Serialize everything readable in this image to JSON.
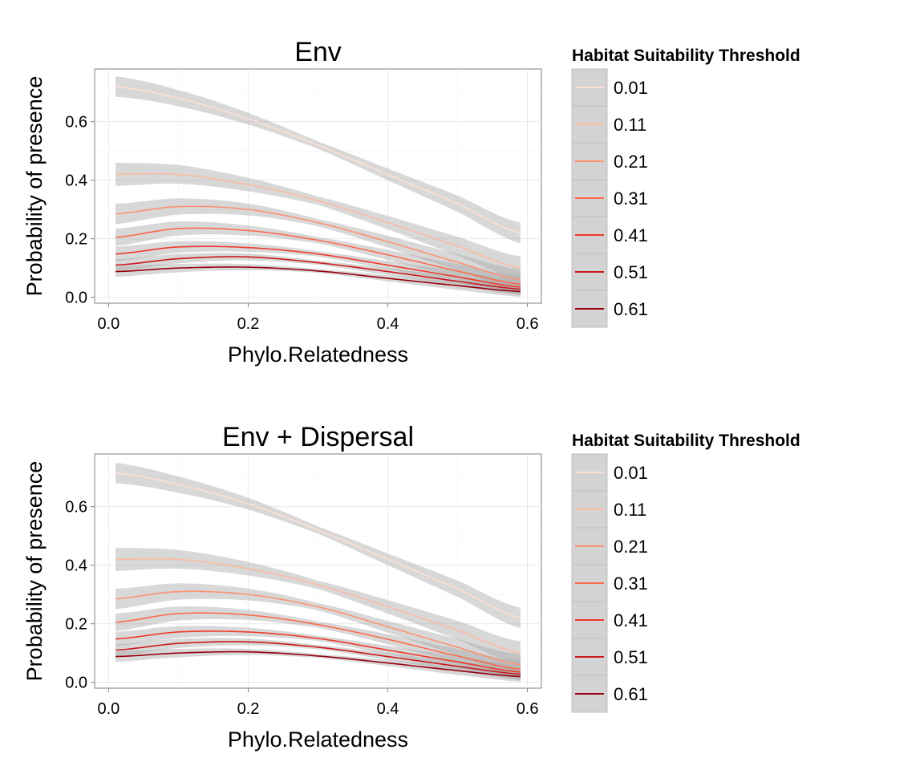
{
  "chart_data": [
    {
      "type": "line",
      "title": "Env",
      "xlabel": "Phylo.Relatedness",
      "ylabel": "Probability of presence",
      "xlim": [
        -0.02,
        0.62
      ],
      "ylim": [
        -0.02,
        0.78
      ],
      "xticks": [
        0.0,
        0.2,
        0.4,
        0.6
      ],
      "xtick_labels": [
        "0.0",
        "0.2",
        "0.4",
        "0.6"
      ],
      "yticks": [
        0.0,
        0.2,
        0.4,
        0.6
      ],
      "ytick_labels": [
        "0.0",
        "0.2",
        "0.4",
        "0.6"
      ],
      "grid": true,
      "legend": {
        "title": "Habitat Suitability Threshold",
        "position": "right"
      },
      "x": [
        0.01,
        0.1,
        0.2,
        0.3,
        0.4,
        0.5,
        0.59
      ],
      "series": [
        {
          "name": "0.01",
          "color": "#fee0d2",
          "values": [
            0.72,
            0.68,
            0.61,
            0.52,
            0.42,
            0.32,
            0.22
          ],
          "band": 0.035
        },
        {
          "name": "0.11",
          "color": "#fcbba1",
          "values": [
            0.42,
            0.42,
            0.385,
            0.33,
            0.255,
            0.175,
            0.1
          ],
          "band": 0.04
        },
        {
          "name": "0.21",
          "color": "#fc9272",
          "values": [
            0.285,
            0.31,
            0.3,
            0.255,
            0.19,
            0.12,
            0.06
          ],
          "band": 0.035
        },
        {
          "name": "0.31",
          "color": "#fb6a4a",
          "values": [
            0.205,
            0.235,
            0.228,
            0.195,
            0.145,
            0.09,
            0.045
          ],
          "band": 0.03
        },
        {
          "name": "0.41",
          "color": "#ef3b2c",
          "values": [
            0.148,
            0.172,
            0.17,
            0.148,
            0.11,
            0.07,
            0.035
          ],
          "band": 0.025
        },
        {
          "name": "0.51",
          "color": "#cb181d",
          "values": [
            0.11,
            0.132,
            0.138,
            0.118,
            0.088,
            0.055,
            0.028
          ],
          "band": 0.02
        },
        {
          "name": "0.61",
          "color": "#99000d",
          "values": [
            0.088,
            0.1,
            0.103,
            0.09,
            0.065,
            0.04,
            0.02
          ],
          "band": 0.018
        }
      ]
    },
    {
      "type": "line",
      "title": "Env + Dispersal",
      "xlabel": "Phylo.Relatedness",
      "ylabel": "Probability of presence",
      "xlim": [
        -0.02,
        0.62
      ],
      "ylim": [
        -0.02,
        0.78
      ],
      "xticks": [
        0.0,
        0.2,
        0.4,
        0.6
      ],
      "xtick_labels": [
        "0.0",
        "0.2",
        "0.4",
        "0.6"
      ],
      "yticks": [
        0.0,
        0.2,
        0.4,
        0.6
      ],
      "ytick_labels": [
        "0.0",
        "0.2",
        "0.4",
        "0.6"
      ],
      "grid": true,
      "legend": {
        "title": "Habitat Suitability Threshold",
        "position": "right"
      },
      "x": [
        0.01,
        0.1,
        0.2,
        0.3,
        0.4,
        0.5,
        0.59
      ],
      "series": [
        {
          "name": "0.01",
          "color": "#fee0d2",
          "values": [
            0.715,
            0.675,
            0.61,
            0.52,
            0.42,
            0.32,
            0.22
          ],
          "band": 0.035
        },
        {
          "name": "0.11",
          "color": "#fcbba1",
          "values": [
            0.42,
            0.42,
            0.388,
            0.333,
            0.258,
            0.178,
            0.1
          ],
          "band": 0.04
        },
        {
          "name": "0.21",
          "color": "#fc9272",
          "values": [
            0.285,
            0.31,
            0.3,
            0.258,
            0.19,
            0.12,
            0.06
          ],
          "band": 0.035
        },
        {
          "name": "0.31",
          "color": "#fb6a4a",
          "values": [
            0.205,
            0.235,
            0.23,
            0.197,
            0.147,
            0.09,
            0.045
          ],
          "band": 0.03
        },
        {
          "name": "0.41",
          "color": "#ef3b2c",
          "values": [
            0.148,
            0.172,
            0.172,
            0.15,
            0.11,
            0.07,
            0.035
          ],
          "band": 0.025
        },
        {
          "name": "0.51",
          "color": "#cb181d",
          "values": [
            0.11,
            0.133,
            0.138,
            0.12,
            0.088,
            0.055,
            0.028
          ],
          "band": 0.02
        },
        {
          "name": "0.61",
          "color": "#99000d",
          "values": [
            0.088,
            0.1,
            0.104,
            0.09,
            0.066,
            0.04,
            0.02
          ],
          "band": 0.018
        }
      ]
    }
  ]
}
